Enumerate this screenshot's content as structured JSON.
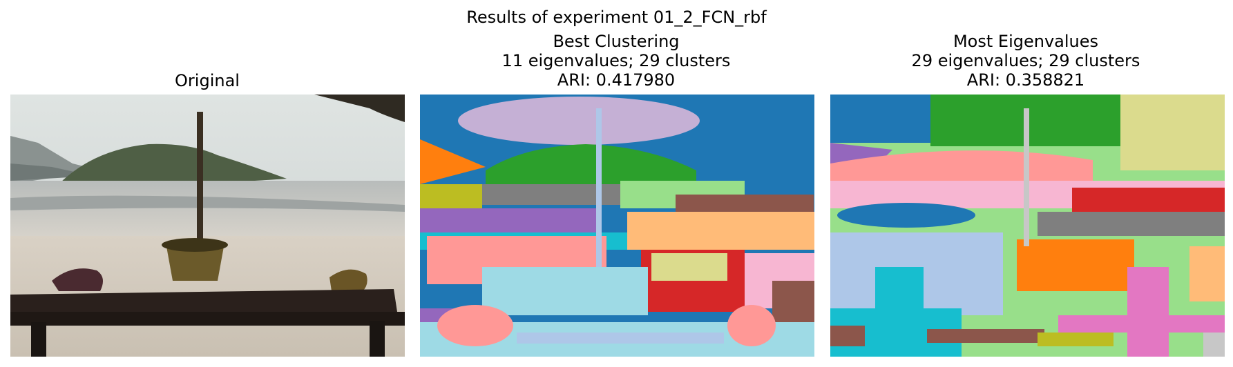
{
  "figure": {
    "suptitle": "Results of experiment 01_2_FCN_rbf"
  },
  "panels": [
    {
      "id": "original",
      "title_lines": [
        "Original"
      ]
    },
    {
      "id": "best",
      "title_lines": [
        "Best Clustering",
        "11 eigenvalues; 29 clusters",
        "ARI: 0.417980"
      ]
    },
    {
      "id": "most",
      "title_lines": [
        "Most Eigenvalues",
        "29 eigenvalues; 29 clusters",
        "ARI: 0.358821"
      ]
    }
  ],
  "palette": {
    "blue": "#1f77b4",
    "light_blue": "#aec7e8",
    "orange": "#ff7f0e",
    "peach": "#ffbb78",
    "green": "#2ca02c",
    "light_green": "#98df8a",
    "red": "#d62728",
    "salmon": "#ff9896",
    "purple": "#9467bd",
    "lavender": "#c5b0d5",
    "brown": "#8c564b",
    "tan": "#c49c94",
    "pink": "#e377c2",
    "light_pink": "#f7b6d2",
    "gray": "#7f7f7f",
    "light_gray": "#c7c7c7",
    "olive": "#bcbd22",
    "khaki": "#dbdb8d",
    "cyan": "#17becf",
    "light_cyan": "#9edae5"
  }
}
